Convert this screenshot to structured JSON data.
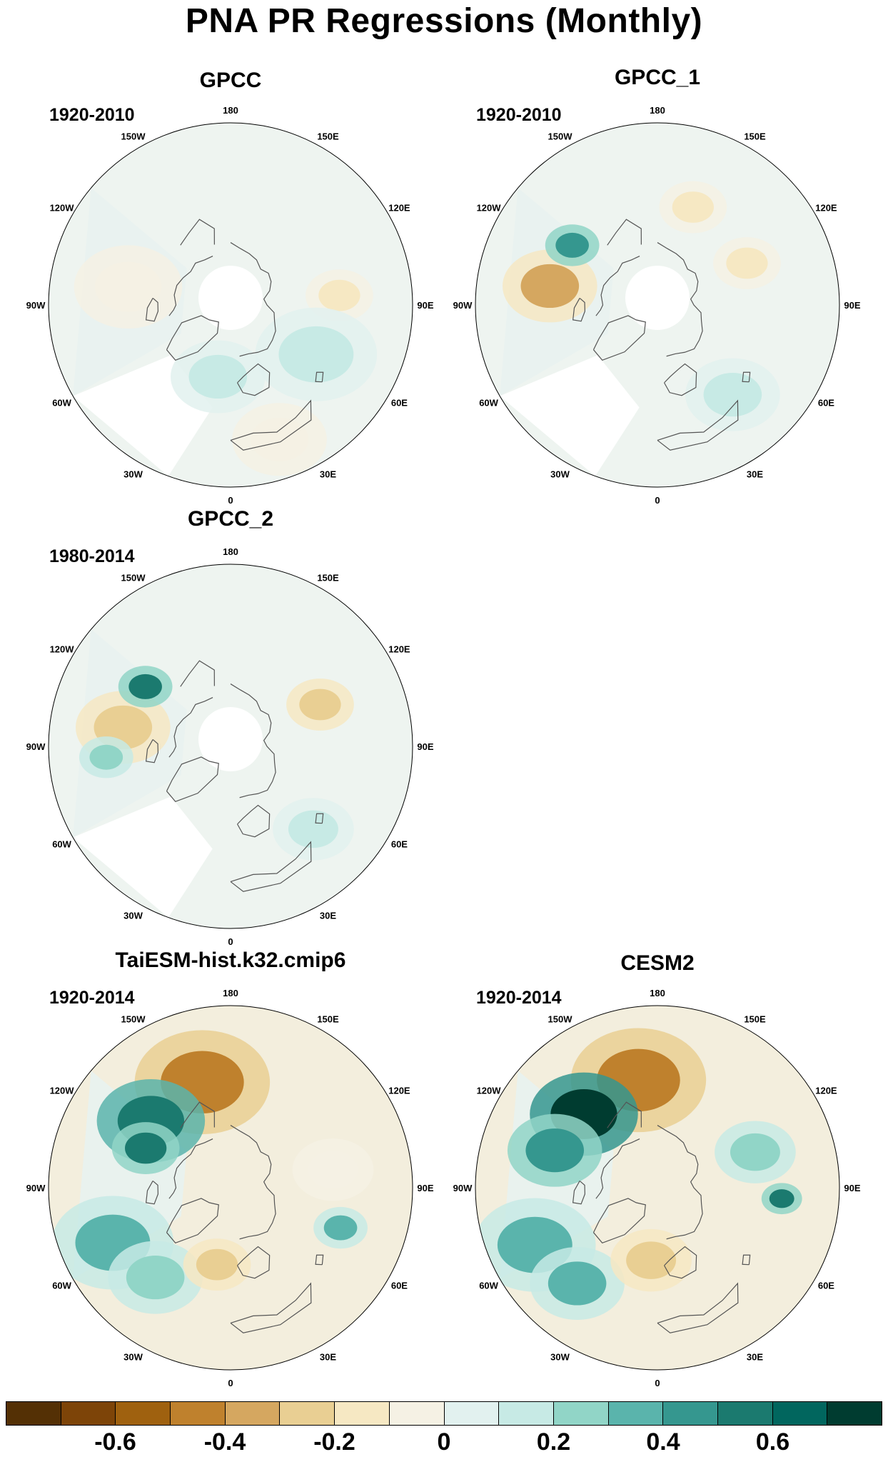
{
  "figure": {
    "title": "PNA PR Regressions (Monthly)"
  },
  "panels": [
    {
      "title": "GPCC",
      "period": "1920-2010",
      "fill": "weak",
      "anomalies": [
        {
          "lon": -10,
          "colat": 28,
          "r": 14,
          "value": 0.15
        },
        {
          "lon": 95,
          "colat": 42,
          "r": 10,
          "value": -0.12
        },
        {
          "lon": 60,
          "colat": 38,
          "r": 18,
          "value": 0.1
        },
        {
          "lon": -100,
          "colat": 40,
          "r": 16,
          "value": -0.1
        },
        {
          "lon": 20,
          "colat": 55,
          "r": 14,
          "value": -0.1
        }
      ]
    },
    {
      "title": "GPCC_1",
      "period": "1920-2010",
      "fill": "weak",
      "anomalies": [
        {
          "lon": -100,
          "colat": 42,
          "r": 14,
          "value": -0.35
        },
        {
          "lon": -125,
          "colat": 40,
          "r": 8,
          "value": 0.45
        },
        {
          "lon": 115,
          "colat": 38,
          "r": 10,
          "value": -0.2
        },
        {
          "lon": 40,
          "colat": 45,
          "r": 14,
          "value": 0.12
        },
        {
          "lon": 160,
          "colat": 40,
          "r": 10,
          "value": -0.15
        }
      ]
    },
    {
      "title": "GPCC_2",
      "period": "1980-2014",
      "fill": "weak",
      "anomalies": [
        {
          "lon": -100,
          "colat": 42,
          "r": 14,
          "value": -0.3
        },
        {
          "lon": -125,
          "colat": 40,
          "r": 8,
          "value": 0.5
        },
        {
          "lon": 115,
          "colat": 38,
          "r": 10,
          "value": -0.25
        },
        {
          "lon": -85,
          "colat": 48,
          "r": 8,
          "value": 0.2
        },
        {
          "lon": 45,
          "colat": 45,
          "r": 12,
          "value": 0.12
        }
      ]
    },
    {
      "title": "TaiESM-hist.k32.cmip6",
      "period": "1920-2014",
      "fill": "strong",
      "anomalies": [
        {
          "lon": -165,
          "colat": 42,
          "r": 20,
          "value": -0.5
        },
        {
          "lon": -130,
          "colat": 40,
          "r": 16,
          "value": 0.6
        },
        {
          "lon": -115,
          "colat": 36,
          "r": 10,
          "value": 0.5
        },
        {
          "lon": -65,
          "colat": 50,
          "r": 18,
          "value": 0.3
        },
        {
          "lon": -40,
          "colat": 45,
          "r": 14,
          "value": 0.25
        },
        {
          "lon": -10,
          "colat": 30,
          "r": 10,
          "value": -0.3
        },
        {
          "lon": 70,
          "colat": 45,
          "r": 8,
          "value": 0.35
        },
        {
          "lon": 100,
          "colat": 40,
          "r": 12,
          "value": -0.1
        }
      ]
    },
    {
      "title": "CESM2",
      "period": "1920-2014",
      "fill": "strong",
      "anomalies": [
        {
          "lon": -170,
          "colat": 42,
          "r": 20,
          "value": -0.45
        },
        {
          "lon": -135,
          "colat": 40,
          "r": 16,
          "value": 0.8
        },
        {
          "lon": -110,
          "colat": 42,
          "r": 14,
          "value": 0.4
        },
        {
          "lon": -65,
          "colat": 52,
          "r": 18,
          "value": 0.35
        },
        {
          "lon": -40,
          "colat": 48,
          "r": 14,
          "value": 0.3
        },
        {
          "lon": -5,
          "colat": 28,
          "r": 12,
          "value": -0.3
        },
        {
          "lon": 85,
          "colat": 48,
          "r": 6,
          "value": 0.55
        },
        {
          "lon": 110,
          "colat": 40,
          "r": 12,
          "value": 0.25
        }
      ]
    }
  ],
  "lon_labels": [
    "180",
    "150E",
    "120E",
    "90E",
    "60E",
    "30E",
    "0",
    "30W",
    "60W",
    "90W",
    "120W",
    "150W"
  ],
  "colorbar": {
    "colors": [
      "#543005",
      "#7d4408",
      "#9f610f",
      "#bf812d",
      "#d5a760",
      "#e9cf93",
      "#f6e8c3",
      "#f5f1e4",
      "#e2f1ef",
      "#c7eae5",
      "#91d5c7",
      "#5ab4ac",
      "#35978f",
      "#1b7a6f",
      "#01665e",
      "#003c30"
    ],
    "ticks": [
      "-0.6",
      "-0.4",
      "-0.2",
      "0",
      "0.2",
      "0.4",
      "0.6"
    ],
    "tick_values": [
      -0.6,
      -0.4,
      -0.2,
      0,
      0.2,
      0.4,
      0.6
    ],
    "min": -0.8,
    "max": 0.8
  }
}
